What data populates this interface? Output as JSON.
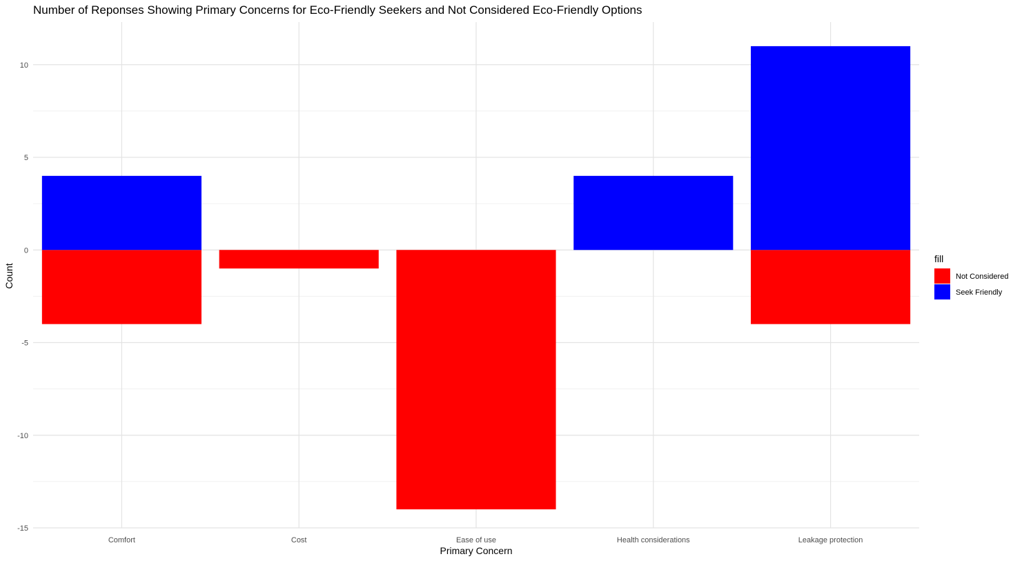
{
  "chart_data": {
    "type": "bar",
    "stacked": true,
    "title": "Number of Reponses Showing Primary Concerns for Eco-Friendly Seekers and Not Considered Eco-Friendly Options",
    "xlabel": "Primary Concern",
    "ylabel": "Count",
    "categories": [
      "Comfort",
      "Cost",
      "Ease of use",
      "Health considerations",
      "Leakage protection"
    ],
    "series": [
      {
        "name": "Not Considered",
        "color": "#ff0000",
        "values": [
          -4,
          -1,
          -14,
          0,
          -4
        ]
      },
      {
        "name": "Seek Friendly",
        "color": "#0000ff",
        "values": [
          4,
          0,
          0,
          4,
          11
        ]
      }
    ],
    "ylim": [
      -15,
      12.3
    ],
    "yticks": [
      -15,
      -10,
      -5,
      0,
      5,
      10
    ],
    "ytick_labels": [
      "-15",
      "-10",
      "-5",
      "0",
      "5",
      "10"
    ],
    "grid": true,
    "legend": {
      "title": "fill",
      "position": "right"
    }
  }
}
